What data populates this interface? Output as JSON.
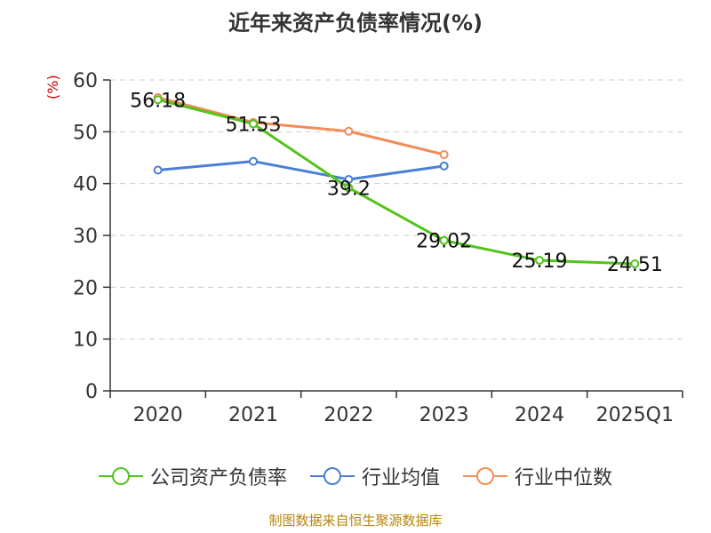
{
  "title": "近年来资产负债率情况(%)",
  "y_unit": "(%)",
  "source_note": "制图数据来自恒生聚源数据库",
  "colors": {
    "company": "#52c41a",
    "industry_avg": "#4a7fd6",
    "industry_median": "#f28c58",
    "axis": "#333333",
    "grid": "#cccccc"
  },
  "legend": [
    {
      "label": "公司资产负债率",
      "color": "#52c41a"
    },
    {
      "label": "行业均值",
      "color": "#4a7fd6"
    },
    {
      "label": "行业中位数",
      "color": "#f28c58"
    }
  ],
  "chart_data": {
    "type": "line",
    "title": "近年来资产负债率情况(%)",
    "categories": [
      "2020",
      "2021",
      "2022",
      "2023",
      "2024",
      "2025Q1"
    ],
    "ylim": [
      0,
      60
    ],
    "yticks": [
      0,
      10,
      20,
      30,
      40,
      50,
      60
    ],
    "grid": true,
    "legend_position": "bottom",
    "series": [
      {
        "name": "公司资产负债率",
        "values": [
          56.18,
          51.53,
          39.2,
          29.02,
          25.19,
          24.51
        ],
        "labels": [
          "56.18",
          "51.53",
          "39.2",
          "29.02",
          "25.19",
          "24.51"
        ],
        "show_labels": true
      },
      {
        "name": "行业均值",
        "values": [
          42.6,
          44.3,
          40.8,
          43.4,
          null,
          null
        ],
        "show_labels": false
      },
      {
        "name": "行业中位数",
        "values": [
          56.6,
          51.8,
          50.1,
          45.6,
          null,
          null
        ],
        "show_labels": false
      }
    ]
  }
}
